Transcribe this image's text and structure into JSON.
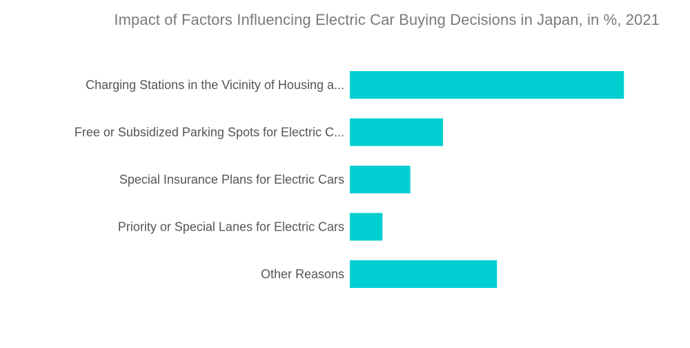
{
  "title": "Impact of Factors Influencing Electric Car Buying Decisions in Japan, in %, 2021",
  "colors": {
    "bar": "#00ced1",
    "title": "#7a7a7a",
    "label": "#555555",
    "background": "#ffffff"
  },
  "chart_data": {
    "type": "bar",
    "orientation": "horizontal",
    "title": "Impact of Factors Influencing Electric Car Buying Decisions in Japan, in %, 2021",
    "categories": [
      "Charging Stations in the Vicinity of Housing a...",
      "Free or Subsidized Parking Spots for Electric C...",
      "Special Insurance Plans for Electric Cars",
      "Priority or Special Lanes for Electric Cars",
      "Other Reasons"
    ],
    "values": [
      46.2,
      15.7,
      10.2,
      5.5,
      24.8
    ],
    "xlim": [
      0,
      50
    ],
    "grid": false,
    "legend": "none"
  }
}
